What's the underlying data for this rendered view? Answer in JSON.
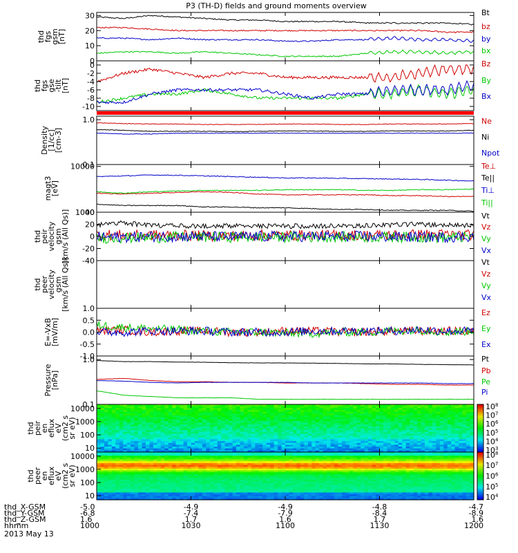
{
  "title": "P3 (TH-D) fields and ground moments overview",
  "date_label": "2013 May 13",
  "chart_data": [
    {
      "type": "line",
      "panel": "fgs_gsm",
      "ylabel_lines": [
        "thd",
        "fgs",
        "gsm",
        "[nT]"
      ],
      "ylim": [
        0,
        32
      ],
      "yticks": [
        "0",
        "10",
        "20",
        "30"
      ],
      "series": [
        {
          "name": "Bt",
          "color": "#000000",
          "values": [
            29,
            28,
            30,
            29,
            28,
            27,
            27,
            26,
            26,
            26,
            25,
            25,
            25,
            25,
            24
          ]
        },
        {
          "name": "bz",
          "color": "#d00000",
          "values": [
            22,
            22,
            21,
            20,
            20,
            20,
            20,
            20,
            20,
            20,
            20,
            20,
            20,
            19,
            19
          ]
        },
        {
          "name": "by",
          "color": "#0000c8",
          "values": [
            15,
            15,
            14,
            15,
            14,
            14,
            14,
            13,
            13,
            14,
            14,
            15,
            14,
            14,
            13
          ]
        },
        {
          "name": "bx",
          "color": "#00c800",
          "values": [
            5,
            6,
            6,
            5,
            6,
            5,
            4,
            3,
            3,
            3,
            5,
            6,
            6,
            5,
            6
          ]
        }
      ]
    },
    {
      "type": "line",
      "panel": "fgs_gse",
      "ylabel_lines": [
        "thd",
        "fgs",
        "gse",
        "-tilt",
        "[nT]"
      ],
      "ylim": [
        -11,
        1
      ],
      "yticks": [
        "-10",
        "-8",
        "-6",
        "-4",
        "-2",
        "0"
      ],
      "series": [
        {
          "name": "Bz",
          "color": "#d00000",
          "values": [
            -4,
            -2,
            -1,
            -2,
            -3,
            -2,
            -2,
            -3,
            -3,
            -3,
            -3,
            -3,
            -2,
            -1,
            -1
          ]
        },
        {
          "name": "By",
          "color": "#00c800",
          "values": [
            -9,
            -8,
            -7,
            -7,
            -6,
            -7,
            -8,
            -8,
            -8,
            -8,
            -7,
            -7,
            -6,
            -7,
            -6
          ]
        },
        {
          "name": "Bx",
          "color": "#0000c8",
          "values": [
            -9,
            -9,
            -7,
            -6,
            -6,
            -6,
            -6,
            -7,
            -8,
            -7,
            -7,
            -6,
            -6,
            -6,
            -5
          ]
        }
      ]
    },
    {
      "type": "line",
      "panel": "density",
      "ylabel_lines": [
        "Density",
        "[1/cc]",
        "[cm-3]"
      ],
      "ylim_log": [
        0.1,
        1.2
      ],
      "yticks": [
        "0.1",
        "1.0"
      ],
      "series": [
        {
          "name": "Ne",
          "color": "#d00000",
          "values": [
            0.85,
            0.82,
            0.8,
            0.8,
            0.78,
            0.78,
            0.78,
            0.8,
            0.8,
            0.78,
            0.78,
            0.8,
            0.8,
            0.8,
            0.82
          ]
        },
        {
          "name": "Ni",
          "color": "#000000",
          "values": [
            0.6,
            0.58,
            0.55,
            0.55,
            0.55,
            0.54,
            0.55,
            0.56,
            0.56,
            0.55,
            0.55,
            0.56,
            0.56,
            0.56,
            0.58
          ]
        },
        {
          "name": "Npot",
          "color": "#0000c8",
          "values": [
            0.5,
            0.48,
            0.48,
            0.5,
            0.5,
            0.5,
            0.5,
            0.5,
            0.5,
            0.5,
            0.5,
            0.5,
            0.5,
            0.5,
            0.5
          ]
        }
      ]
    },
    {
      "type": "line",
      "panel": "temperature",
      "ylabel_lines": [
        "magt3",
        "[eV]"
      ],
      "ylim_log": [
        1000,
        11000
      ],
      "yticks": [
        "1000",
        "10000"
      ],
      "series": [
        {
          "name": "Te⊥",
          "color": "#d00000",
          "values": [
            2600,
            2500,
            2600,
            2700,
            2800,
            2700,
            2500,
            2400,
            2400,
            2400,
            2400,
            2300,
            2300,
            2200,
            2200
          ]
        },
        {
          "name": "Te||",
          "color": "#000000",
          "values": [
            1500,
            1400,
            1400,
            1400,
            1300,
            1300,
            1250,
            1250,
            1200,
            1150,
            1150,
            1100,
            1100,
            1100,
            1050
          ]
        },
        {
          "name": "Ti⊥",
          "color": "#0000c8",
          "values": [
            6000,
            6200,
            6500,
            6400,
            6200,
            6000,
            5800,
            5600,
            5600,
            5500,
            5400,
            5300,
            5200,
            5000,
            4800
          ]
        },
        {
          "name": "Ti||",
          "color": "#00c800",
          "values": [
            2800,
            2600,
            2800,
            2900,
            3000,
            3000,
            3000,
            3100,
            3100,
            3100,
            3000,
            3000,
            3100,
            3100,
            3200
          ]
        }
      ]
    },
    {
      "type": "line",
      "panel": "peir_velocity",
      "ylabel_lines": [
        "thd",
        "peir",
        "velocity",
        "gsm",
        "[km/s (All Qs)]"
      ],
      "ylim": [
        -40,
        40
      ],
      "yticks": [
        "-40",
        "-20",
        "0",
        "20",
        "40"
      ],
      "series": [
        {
          "name": "Vt",
          "color": "#000000",
          "values": [
            15,
            18,
            14,
            14,
            13,
            13,
            13,
            13,
            13,
            13,
            14,
            15,
            16,
            15,
            14
          ]
        },
        {
          "name": "Vz",
          "color": "#d00000",
          "values": [
            3,
            2,
            2,
            2,
            1,
            1,
            2,
            2,
            2,
            2,
            2,
            2,
            3,
            3,
            2
          ]
        },
        {
          "name": "Vy",
          "color": "#00c800",
          "values": [
            -3,
            -2,
            -2,
            -1,
            -1,
            -1,
            -1,
            -1,
            -1,
            -1,
            -1,
            -1,
            -1,
            -2,
            -1
          ]
        },
        {
          "name": "Vx",
          "color": "#0000c8",
          "values": [
            -1,
            -1,
            0,
            0,
            0,
            -1,
            0,
            0,
            0,
            0,
            0,
            -1,
            -1,
            -1,
            0
          ]
        }
      ]
    },
    {
      "type": "line",
      "panel": "peer_velocity",
      "ylabel_lines": [
        "thd",
        "peer",
        "velocity",
        "gsm",
        "[km/s (All Qs)]"
      ],
      "series": [
        {
          "name": "Vt",
          "color": "#000000",
          "values": []
        },
        {
          "name": "Vz",
          "color": "#d00000",
          "values": []
        },
        {
          "name": "Vy",
          "color": "#00c800",
          "values": []
        },
        {
          "name": "Vx",
          "color": "#0000c8",
          "values": []
        }
      ]
    },
    {
      "type": "line",
      "panel": "efield",
      "ylabel_lines": [
        "E=-VxB",
        "[mV/m]"
      ],
      "ylim": [
        -1.0,
        1.0
      ],
      "yticks": [
        "-1.0",
        "-0.5",
        "0.0",
        "0.5",
        "1.0"
      ],
      "series": [
        {
          "name": "Ez",
          "color": "#d00000",
          "values": [
            0.05,
            0.1,
            0.0,
            0.05,
            0.05,
            0.0,
            0.0,
            0.05,
            0.05,
            0.0,
            0.0,
            0.05,
            0.05,
            0.05,
            0.05
          ]
        },
        {
          "name": "Ey",
          "color": "#00c800",
          "values": [
            0.3,
            0.2,
            0.15,
            0.1,
            0.05,
            0.0,
            0.0,
            -0.05,
            -0.05,
            0.0,
            0.0,
            0.05,
            0.1,
            0.0,
            0.05
          ]
        },
        {
          "name": "Ex",
          "color": "#0000c8",
          "values": [
            0.0,
            0.0,
            0.05,
            0.05,
            0.05,
            0.0,
            0.0,
            0.0,
            0.05,
            0.05,
            0.05,
            0.05,
            0.1,
            0.05,
            0.05
          ]
        }
      ]
    },
    {
      "type": "line",
      "panel": "pressure",
      "ylabel_lines": [
        "Pressure",
        "[nPa]"
      ],
      "ylim_log": [
        0.1,
        1.2
      ],
      "yticks": [
        "0.1",
        "1.0"
      ],
      "series": [
        {
          "name": "Pt",
          "color": "#000000",
          "values": [
            0.95,
            0.9,
            0.9,
            0.88,
            0.87,
            0.85,
            0.84,
            0.84,
            0.83,
            0.82,
            0.8,
            0.8,
            0.78,
            0.77,
            0.76
          ]
        },
        {
          "name": "Pb",
          "color": "#d00000",
          "values": [
            0.36,
            0.38,
            0.34,
            0.32,
            0.32,
            0.31,
            0.31,
            0.3,
            0.3,
            0.3,
            0.29,
            0.28,
            0.28,
            0.27,
            0.27
          ]
        },
        {
          "name": "Pe",
          "color": "#00c800",
          "values": [
            0.2,
            0.16,
            0.15,
            0.14,
            0.14,
            0.14,
            0.13,
            0.13,
            0.13,
            0.13,
            0.13,
            0.13,
            0.13,
            0.13,
            0.13
          ]
        },
        {
          "name": "Pi",
          "color": "#0000c8",
          "values": [
            0.34,
            0.33,
            0.31,
            0.3,
            0.31,
            0.31,
            0.31,
            0.31,
            0.3,
            0.3,
            0.3,
            0.3,
            0.3,
            0.29,
            0.29
          ]
        }
      ]
    },
    {
      "type": "heatmap",
      "panel": "peir_spectrogram",
      "ylabel_lines": [
        "thd",
        "peir",
        "en",
        "eflux",
        "eV",
        "(cm2 s",
        "sr eV)"
      ],
      "yticks": [
        "10",
        "100",
        "1000",
        "10000"
      ],
      "colorbar_ticks": [
        "10^3",
        "10^4",
        "10^5",
        "10^6",
        "10^7",
        "10^8"
      ]
    },
    {
      "type": "heatmap",
      "panel": "peer_spectrogram",
      "ylabel_lines": [
        "thd",
        "peer",
        "en",
        "eflux",
        "eV",
        "(cm2 s",
        "sr eV)"
      ],
      "yticks": [
        "10",
        "100",
        "1000",
        "10000"
      ],
      "colorbar_ticks": [
        "10^4",
        "10^5",
        "10^6",
        "10^7",
        "10^8"
      ]
    }
  ],
  "ephemeris": {
    "row_labels": [
      "thd_X-GSM",
      "thd_Y-GSM",
      "thd_Z-GSM",
      "hhmm"
    ],
    "columns": [
      [
        "-5.0",
        "-6.8",
        "1.6",
        "1000"
      ],
      [
        "-4.9",
        "-7.4",
        "1.7",
        "1030"
      ],
      [
        "-4.9",
        "-7.9",
        "1.6",
        "1100"
      ],
      [
        "-4.8",
        "-8.4",
        "1.7",
        "1130"
      ],
      [
        "-4.7",
        "-8.9",
        "1.6",
        "1200"
      ]
    ]
  }
}
